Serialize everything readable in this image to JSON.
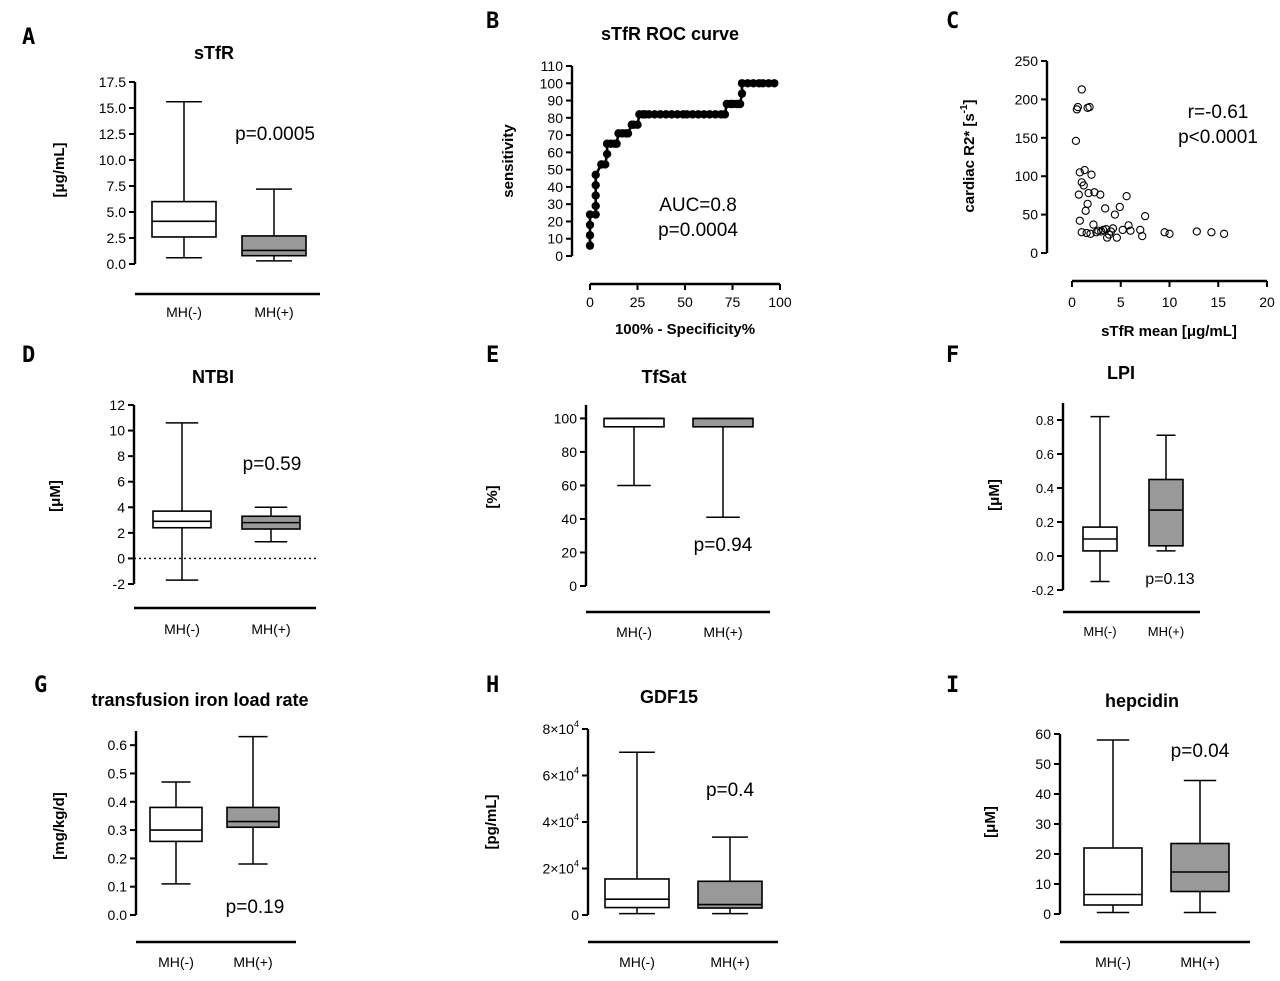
{
  "colors": {
    "accent": "#138a8a",
    "fill_positive": "#999999",
    "fill_negative": "#ffffff",
    "line": "#000000"
  },
  "chart_data": [
    {
      "id": "A",
      "panel_label": "A",
      "type": "boxplot",
      "title": "sTfR",
      "ylabel": "[μg/mL]",
      "ylim": [
        0,
        17.5
      ],
      "yticks": [
        0,
        2.5,
        5,
        7.5,
        10,
        12.5,
        15,
        17.5
      ],
      "ytick_labels": [
        "0.0",
        "2.5",
        "5.0",
        "7.5",
        "10.0",
        "12.5",
        "15.0",
        "17.5"
      ],
      "categories": [
        "MH(-)",
        "MH(+)"
      ],
      "boxes": [
        {
          "min": 0.6,
          "q1": 2.6,
          "median": 4.1,
          "q3": 6.0,
          "max": 15.6,
          "fill": "negative"
        },
        {
          "min": 0.3,
          "q1": 0.8,
          "median": 1.3,
          "q3": 2.7,
          "max": 7.2,
          "fill": "positive"
        }
      ],
      "annotations": [
        "p=0.0005"
      ]
    },
    {
      "id": "B",
      "panel_label": "B",
      "type": "line",
      "title": "sTfR ROC curve",
      "xlabel": "100% - Specificity%",
      "ylabel": "sensitivity",
      "xlim": [
        0,
        100
      ],
      "ylim": [
        0,
        110
      ],
      "xticks": [
        0,
        25,
        50,
        75,
        100
      ],
      "xtick_labels": [
        "0",
        "25",
        "50",
        "75",
        "100"
      ],
      "yticks": [
        0,
        10,
        20,
        30,
        40,
        50,
        60,
        70,
        80,
        90,
        100,
        110
      ],
      "ytick_labels": [
        "0",
        "10",
        "20",
        "30",
        "40",
        "50",
        "60",
        "70",
        "80",
        "90",
        "100",
        "110"
      ],
      "x": [
        0,
        0,
        0,
        0,
        3,
        3,
        3,
        3,
        3,
        6,
        6,
        8,
        9,
        9,
        11,
        13,
        14,
        15,
        17,
        19,
        20,
        22,
        23,
        25,
        26,
        28,
        29,
        31,
        34,
        37,
        40,
        43,
        46,
        49,
        51,
        54,
        57,
        60,
        63,
        66,
        69,
        71,
        72,
        74,
        75,
        77,
        78,
        79,
        80,
        80,
        83,
        86,
        89,
        91,
        94,
        97
      ],
      "y": [
        6,
        12,
        18,
        24,
        24,
        29,
        35,
        41,
        47,
        53,
        53,
        53,
        59,
        65,
        65,
        65,
        65,
        71,
        71,
        71,
        71,
        76,
        76,
        76,
        82,
        82,
        82,
        82,
        82,
        82,
        82,
        82,
        82,
        82,
        82,
        82,
        82,
        82,
        82,
        82,
        82,
        82,
        88,
        88,
        88,
        88,
        88,
        88,
        94,
        100,
        100,
        100,
        100,
        100,
        100,
        100
      ],
      "annotations": [
        "AUC=0.8",
        "p=0.0004"
      ]
    },
    {
      "id": "C",
      "panel_label": "C",
      "type": "scatter",
      "title": "",
      "xlabel": "sTfR mean [μg/mL]",
      "ylabel": "cardiac R2* [s-1]",
      "ylabel_parts": [
        "cardiac R2* [s",
        "-1",
        "]"
      ],
      "xlim": [
        0,
        20
      ],
      "ylim": [
        0,
        250
      ],
      "xticks": [
        0,
        5,
        10,
        15,
        20
      ],
      "xtick_labels": [
        "0",
        "5",
        "10",
        "15",
        "20"
      ],
      "yticks": [
        0,
        50,
        100,
        150,
        200,
        250
      ],
      "ytick_labels": [
        "0",
        "50",
        "100",
        "150",
        "200",
        "250"
      ],
      "x": [
        1.0,
        0.6,
        0.5,
        0.4,
        1.6,
        1.8,
        2.0,
        1.3,
        0.8,
        1.0,
        1.2,
        2.3,
        2.9,
        1.7,
        0.7,
        1.4,
        0.8,
        1.6,
        2.2,
        1.0,
        1.5,
        1.9,
        2.5,
        2.7,
        3.0,
        3.2,
        3.5,
        3.8,
        4.0,
        4.2,
        3.6,
        4.4,
        4.6,
        4.9,
        3.4,
        5.2,
        5.6,
        6.0,
        5.8,
        7.0,
        7.2,
        7.5,
        9.5,
        10.0,
        12.8,
        14.3,
        15.6
      ],
      "y": [
        213,
        190,
        187,
        146,
        189,
        190,
        102,
        108,
        105,
        92,
        88,
        79,
        76,
        78,
        76,
        55,
        42,
        64,
        37,
        27,
        26,
        25,
        27,
        29,
        28,
        30,
        31,
        24,
        28,
        32,
        20,
        50,
        20,
        60,
        58,
        30,
        74,
        29,
        36,
        30,
        22,
        48,
        27,
        25,
        28,
        27,
        25
      ],
      "annotations": [
        "r=-0.61",
        "p<0.0001"
      ]
    },
    {
      "id": "D",
      "panel_label": "D",
      "type": "boxplot",
      "title": "NTBI",
      "ylabel": "[μM]",
      "ylim": [
        -2,
        12
      ],
      "yticks": [
        -2,
        0,
        2,
        4,
        6,
        8,
        10,
        12
      ],
      "ytick_labels": [
        "-2",
        "0",
        "2",
        "4",
        "6",
        "8",
        "10",
        "12"
      ],
      "categories": [
        "MH(-)",
        "MH(+)"
      ],
      "boxes": [
        {
          "min": -1.7,
          "q1": 2.4,
          "median": 2.9,
          "q3": 3.7,
          "max": 10.6,
          "fill": "negative"
        },
        {
          "min": 1.3,
          "q1": 2.3,
          "median": 2.8,
          "q3": 3.3,
          "max": 4.0,
          "fill": "positive"
        }
      ],
      "reference_line": 0,
      "annotations": [
        "p=0.59"
      ]
    },
    {
      "id": "E",
      "panel_label": "E",
      "type": "boxplot",
      "title": "TfSat",
      "ylabel": "[%]",
      "ylim": [
        0,
        108
      ],
      "yticks": [
        0,
        20,
        40,
        60,
        80,
        100
      ],
      "ytick_labels": [
        "0",
        "20",
        "40",
        "60",
        "80",
        "100"
      ],
      "categories": [
        "MH(-)",
        "MH(+)"
      ],
      "boxes": [
        {
          "min": 60,
          "q1": 95,
          "median": 100,
          "q3": 100,
          "max": 100,
          "fill": "negative"
        },
        {
          "min": 41,
          "q1": 95,
          "median": 100,
          "q3": 100,
          "max": 100,
          "fill": "positive"
        }
      ],
      "annotations": [
        "p=0.94"
      ]
    },
    {
      "id": "F",
      "panel_label": "F",
      "type": "boxplot",
      "title": "LPI",
      "ylabel": "[μM]",
      "ylim": [
        -0.2,
        0.9
      ],
      "yticks": [
        -0.2,
        0,
        0.2,
        0.4,
        0.6,
        0.8
      ],
      "ytick_labels": [
        "-0.2",
        "0.0",
        "0.2",
        "0.4",
        "0.6",
        "0.8"
      ],
      "categories": [
        "MH(-)",
        "MH(+)"
      ],
      "boxes": [
        {
          "min": -0.15,
          "q1": 0.03,
          "median": 0.1,
          "q3": 0.17,
          "max": 0.82,
          "fill": "negative"
        },
        {
          "min": 0.03,
          "q1": 0.06,
          "median": 0.27,
          "q3": 0.45,
          "max": 0.71,
          "fill": "positive"
        }
      ],
      "annotations": [
        "p=0.13"
      ]
    },
    {
      "id": "G",
      "panel_label": "G",
      "type": "boxplot",
      "title": "transfusion iron load rate",
      "ylabel": "[mg/kg/d]",
      "ylim": [
        0,
        0.65
      ],
      "yticks": [
        0,
        0.1,
        0.2,
        0.3,
        0.4,
        0.5,
        0.6
      ],
      "ytick_labels": [
        "0.0",
        "0.1",
        "0.2",
        "0.3",
        "0.4",
        "0.5",
        "0.6"
      ],
      "categories": [
        "MH(-)",
        "MH(+)"
      ],
      "boxes": [
        {
          "min": 0.11,
          "q1": 0.26,
          "median": 0.3,
          "q3": 0.38,
          "max": 0.47,
          "fill": "negative"
        },
        {
          "min": 0.18,
          "q1": 0.31,
          "median": 0.33,
          "q3": 0.38,
          "max": 0.63,
          "fill": "positive"
        }
      ],
      "annotations": [
        "p=0.19"
      ]
    },
    {
      "id": "H",
      "panel_label": "H",
      "type": "boxplot",
      "title": "GDF15",
      "ylabel": "[pg/mL]",
      "ylim": [
        0,
        80000
      ],
      "yticks": [
        0,
        20000,
        40000,
        60000,
        80000
      ],
      "ytick_labels": [
        "0",
        "2×10",
        "4×10",
        "6×10",
        "8×10"
      ],
      "ytick_exponent": "4",
      "categories": [
        "MH(-)",
        "MH(+)"
      ],
      "boxes": [
        {
          "min": 600,
          "q1": 3200,
          "median": 6800,
          "q3": 15500,
          "max": 70000,
          "fill": "negative"
        },
        {
          "min": 600,
          "q1": 3000,
          "median": 4500,
          "q3": 14500,
          "max": 33500,
          "fill": "positive"
        }
      ],
      "annotations": [
        "p=0.4"
      ]
    },
    {
      "id": "I",
      "panel_label": "I",
      "type": "boxplot",
      "title": "hepcidin",
      "ylabel": "[μM]",
      "ylim": [
        0,
        60
      ],
      "yticks": [
        0,
        10,
        20,
        30,
        40,
        50,
        60
      ],
      "ytick_labels": [
        "0",
        "10",
        "20",
        "30",
        "40",
        "50",
        "60"
      ],
      "categories": [
        "MH(-)",
        "MH(+)"
      ],
      "boxes": [
        {
          "min": 0.5,
          "q1": 3,
          "median": 6.5,
          "q3": 22,
          "max": 58,
          "fill": "negative"
        },
        {
          "min": 0.5,
          "q1": 7.5,
          "median": 14,
          "q3": 23.5,
          "max": 44.5,
          "fill": "positive"
        }
      ],
      "annotations": [
        "p=0.04"
      ]
    }
  ]
}
